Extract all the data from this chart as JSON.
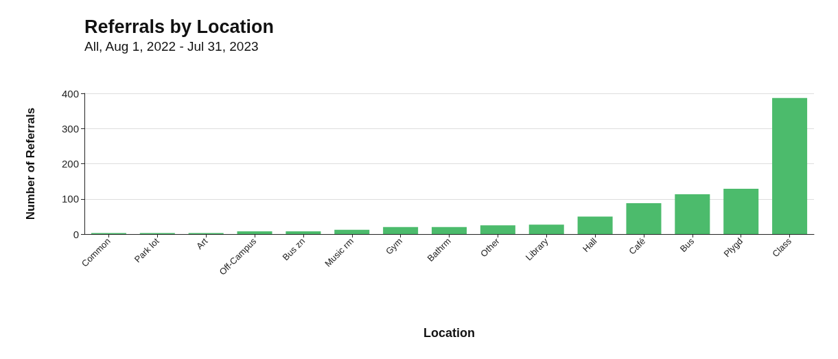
{
  "chart_data": {
    "type": "bar",
    "title": "Referrals by Location",
    "subtitle": "All, Aug 1, 2022 - Jul 31, 2023",
    "xlabel": "Location",
    "ylabel": "Number of Referrals",
    "categories": [
      "Common",
      "Park lot",
      "Art",
      "Off-Campus",
      "Bus zn",
      "Music rm",
      "Gym",
      "Bathrm",
      "Other",
      "Library",
      "Hall",
      "Café",
      "Bus",
      "Plygd",
      "Class"
    ],
    "values": [
      3,
      3,
      3,
      8,
      8,
      12,
      20,
      20,
      25,
      27,
      50,
      88,
      113,
      129,
      387
    ],
    "color": "#4cbb6c",
    "ylim": [
      0,
      400
    ],
    "yticks": [
      0,
      100,
      200,
      300,
      400
    ],
    "grid": "y"
  }
}
